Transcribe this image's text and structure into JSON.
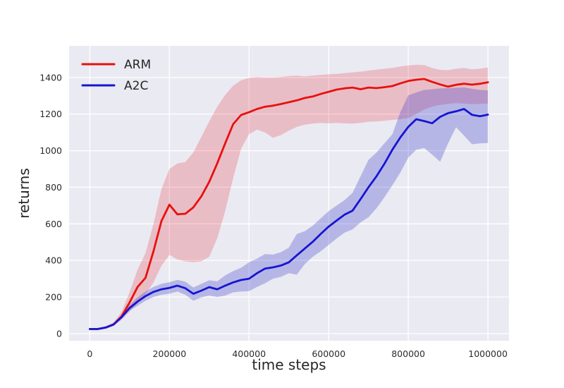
{
  "figure": {
    "xlabel": "time steps",
    "ylabel": "returns"
  },
  "style": {
    "plot_background": "#eaeaf2",
    "grid_color": "#ffffff",
    "text_color": "#262626",
    "arm_color": "#e8100d",
    "a2c_color": "#1515d2",
    "arm_band_color": "rgba(230,30,40,0.22)",
    "a2c_band_color": "rgba(45,45,200,0.28)"
  },
  "legend": {
    "items": [
      {
        "label": "ARM",
        "color": "#e8100d"
      },
      {
        "label": "A2C",
        "color": "#1515d2"
      }
    ]
  },
  "chart_data": {
    "type": "line",
    "title": "",
    "xlabel": "time steps",
    "ylabel": "returns",
    "grid": true,
    "legend_position": "upper left",
    "xlim": [
      -52000,
      1053000
    ],
    "ylim": [
      -39,
      1573
    ],
    "x_ticks": [
      {
        "value": 0,
        "label": "0"
      },
      {
        "value": 200000,
        "label": "200000"
      },
      {
        "value": 400000,
        "label": "400000"
      },
      {
        "value": 600000,
        "label": "600000"
      },
      {
        "value": 800000,
        "label": "800000"
      },
      {
        "value": 1000000,
        "label": "1000000"
      }
    ],
    "y_ticks": [
      {
        "value": 0,
        "label": "0"
      },
      {
        "value": 200,
        "label": "200"
      },
      {
        "value": 400,
        "label": "400"
      },
      {
        "value": 600,
        "label": "600"
      },
      {
        "value": 800,
        "label": "800"
      },
      {
        "value": 1000,
        "label": "1000"
      },
      {
        "value": 1200,
        "label": "1200"
      },
      {
        "value": 1400,
        "label": "1400"
      }
    ],
    "x": [
      0,
      20000,
      40000,
      60000,
      80000,
      100000,
      120000,
      140000,
      160000,
      180000,
      200000,
      220000,
      240000,
      260000,
      280000,
      300000,
      320000,
      340000,
      360000,
      380000,
      400000,
      420000,
      440000,
      460000,
      480000,
      500000,
      520000,
      540000,
      560000,
      580000,
      600000,
      620000,
      640000,
      660000,
      680000,
      700000,
      720000,
      740000,
      760000,
      780000,
      800000,
      820000,
      840000,
      860000,
      880000,
      900000,
      920000,
      940000,
      960000,
      980000,
      1000000
    ],
    "series": [
      {
        "name": "ARM",
        "color": "#e8100d",
        "band_color": "rgba(230,30,40,0.22)",
        "values": [
          25,
          25,
          33,
          50,
          95,
          170,
          255,
          305,
          450,
          615,
          705,
          652,
          655,
          690,
          750,
          830,
          930,
          1040,
          1145,
          1195,
          1210,
          1228,
          1240,
          1246,
          1255,
          1265,
          1275,
          1288,
          1296,
          1310,
          1322,
          1334,
          1341,
          1345,
          1336,
          1345,
          1342,
          1347,
          1353,
          1368,
          1381,
          1388,
          1392,
          1376,
          1362,
          1350,
          1360,
          1366,
          1361,
          1366,
          1374
        ],
        "band_lower": [
          22,
          22,
          28,
          42,
          75,
          120,
          165,
          215,
          280,
          370,
          430,
          405,
          395,
          390,
          395,
          420,
          520,
          670,
          850,
          1010,
          1090,
          1115,
          1100,
          1070,
          1085,
          1110,
          1130,
          1142,
          1148,
          1152,
          1150,
          1152,
          1150,
          1148,
          1152,
          1158,
          1160,
          1163,
          1168,
          1172,
          1178,
          1200,
          1225,
          1240,
          1250,
          1256,
          1260,
          1258,
          1254,
          1256,
          1258
        ],
        "band_upper": [
          28,
          28,
          40,
          62,
          120,
          225,
          350,
          440,
          600,
          790,
          900,
          930,
          938,
          990,
          1075,
          1160,
          1240,
          1305,
          1355,
          1385,
          1398,
          1402,
          1400,
          1400,
          1403,
          1408,
          1410,
          1406,
          1410,
          1414,
          1418,
          1420,
          1424,
          1428,
          1432,
          1438,
          1443,
          1448,
          1452,
          1460,
          1466,
          1470,
          1468,
          1452,
          1442,
          1440,
          1448,
          1452,
          1445,
          1448,
          1455
        ]
      },
      {
        "name": "A2C",
        "color": "#1515d2",
        "band_color": "rgba(45,45,200,0.28)",
        "values": [
          25,
          25,
          33,
          50,
          90,
          140,
          175,
          205,
          228,
          242,
          250,
          262,
          248,
          218,
          235,
          254,
          242,
          262,
          280,
          293,
          300,
          330,
          355,
          362,
          372,
          390,
          428,
          465,
          502,
          545,
          585,
          618,
          650,
          672,
          735,
          800,
          860,
          928,
          1005,
          1072,
          1130,
          1172,
          1162,
          1150,
          1185,
          1205,
          1215,
          1228,
          1196,
          1188,
          1197
        ],
        "band_lower": [
          22,
          22,
          29,
          44,
          80,
          125,
          152,
          180,
          200,
          212,
          218,
          230,
          212,
          180,
          198,
          208,
          200,
          208,
          225,
          230,
          232,
          255,
          275,
          300,
          310,
          330,
          322,
          380,
          420,
          450,
          485,
          520,
          552,
          570,
          608,
          636,
          685,
          745,
          810,
          880,
          962,
          1005,
          1015,
          978,
          940,
          1040,
          1128,
          1082,
          1035,
          1040,
          1042
        ],
        "band_upper": [
          28,
          28,
          38,
          57,
          100,
          155,
          198,
          230,
          255,
          272,
          281,
          294,
          284,
          252,
          272,
          292,
          286,
          318,
          342,
          360,
          390,
          410,
          435,
          432,
          445,
          470,
          544,
          560,
          590,
          630,
          670,
          700,
          730,
          770,
          860,
          950,
          990,
          1040,
          1090,
          1210,
          1302,
          1318,
          1332,
          1336,
          1340,
          1342,
          1344,
          1346,
          1338,
          1332,
          1330
        ]
      }
    ]
  }
}
